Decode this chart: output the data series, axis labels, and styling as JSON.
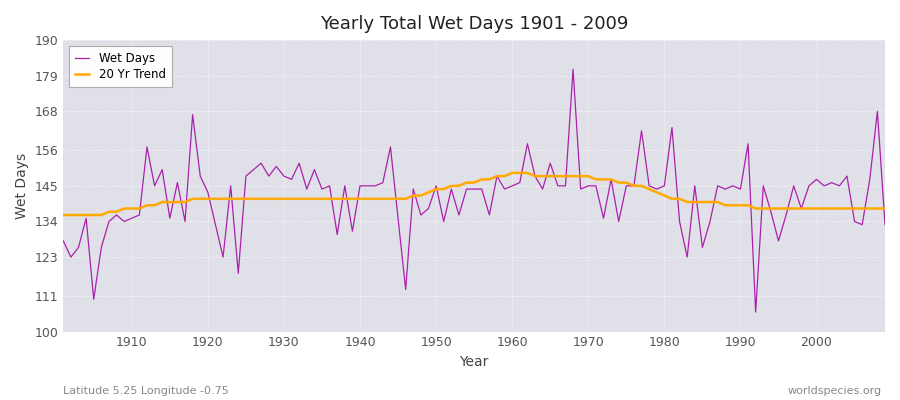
{
  "title": "Yearly Total Wet Days 1901 - 2009",
  "xlabel": "Year",
  "ylabel": "Wet Days",
  "xlim": [
    1901,
    2009
  ],
  "ylim": [
    100,
    190
  ],
  "yticks": [
    100,
    111,
    123,
    134,
    145,
    156,
    168,
    179,
    190
  ],
  "xticks": [
    1910,
    1920,
    1930,
    1940,
    1950,
    1960,
    1970,
    1980,
    1990,
    2000
  ],
  "bg_color": "#e0e0e8",
  "wet_days_color": "#aa22aa",
  "trend_color": "#ffaa00",
  "subtitle_left": "Latitude 5.25 Longitude -0.75",
  "subtitle_right": "worldspecies.org",
  "wet_days": {
    "1901": 128,
    "1902": 123,
    "1903": 126,
    "1904": 135,
    "1905": 110,
    "1906": 126,
    "1907": 134,
    "1908": 136,
    "1909": 134,
    "1910": 135,
    "1911": 136,
    "1912": 157,
    "1913": 145,
    "1914": 150,
    "1915": 135,
    "1916": 146,
    "1917": 134,
    "1918": 167,
    "1919": 148,
    "1920": 143,
    "1921": 133,
    "1922": 123,
    "1923": 145,
    "1924": 118,
    "1925": 148,
    "1926": 150,
    "1927": 152,
    "1928": 148,
    "1929": 151,
    "1930": 148,
    "1931": 147,
    "1932": 152,
    "1933": 144,
    "1934": 150,
    "1935": 144,
    "1936": 145,
    "1937": 130,
    "1938": 145,
    "1939": 131,
    "1940": 145,
    "1941": 145,
    "1942": 145,
    "1943": 146,
    "1944": 157,
    "1945": 135,
    "1946": 113,
    "1947": 144,
    "1948": 136,
    "1949": 138,
    "1950": 145,
    "1951": 134,
    "1952": 144,
    "1953": 136,
    "1954": 144,
    "1955": 144,
    "1956": 144,
    "1957": 136,
    "1958": 148,
    "1959": 144,
    "1960": 145,
    "1961": 146,
    "1962": 158,
    "1963": 148,
    "1964": 144,
    "1965": 152,
    "1966": 145,
    "1967": 145,
    "1968": 181,
    "1969": 144,
    "1970": 145,
    "1971": 145,
    "1972": 135,
    "1973": 147,
    "1974": 134,
    "1975": 145,
    "1976": 145,
    "1977": 162,
    "1978": 145,
    "1979": 144,
    "1980": 145,
    "1981": 163,
    "1982": 134,
    "1983": 123,
    "1984": 145,
    "1985": 126,
    "1986": 134,
    "1987": 145,
    "1988": 144,
    "1989": 145,
    "1990": 144,
    "1991": 158,
    "1992": 106,
    "1993": 145,
    "1994": 137,
    "1995": 128,
    "1996": 136,
    "1997": 145,
    "1998": 138,
    "1999": 145,
    "2000": 147,
    "2001": 145,
    "2002": 146,
    "2003": 145,
    "2004": 148,
    "2005": 134,
    "2006": 133,
    "2007": 147,
    "2008": 168,
    "2009": 133
  },
  "trend": {
    "1901": 136,
    "1902": 136,
    "1903": 136,
    "1904": 136,
    "1905": 136,
    "1906": 136,
    "1907": 137,
    "1908": 137,
    "1909": 138,
    "1910": 138,
    "1911": 138,
    "1912": 139,
    "1913": 139,
    "1914": 140,
    "1915": 140,
    "1916": 140,
    "1917": 140,
    "1918": 141,
    "1919": 141,
    "1920": 141,
    "1921": 141,
    "1922": 141,
    "1923": 141,
    "1924": 141,
    "1925": 141,
    "1926": 141,
    "1927": 141,
    "1928": 141,
    "1929": 141,
    "1930": 141,
    "1931": 141,
    "1932": 141,
    "1933": 141,
    "1934": 141,
    "1935": 141,
    "1936": 141,
    "1937": 141,
    "1938": 141,
    "1939": 141,
    "1940": 141,
    "1941": 141,
    "1942": 141,
    "1943": 141,
    "1944": 141,
    "1945": 141,
    "1946": 141,
    "1947": 142,
    "1948": 142,
    "1949": 143,
    "1950": 144,
    "1951": 144,
    "1952": 145,
    "1953": 145,
    "1954": 146,
    "1955": 146,
    "1956": 147,
    "1957": 147,
    "1958": 148,
    "1959": 148,
    "1960": 149,
    "1961": 149,
    "1962": 149,
    "1963": 148,
    "1964": 148,
    "1965": 148,
    "1966": 148,
    "1967": 148,
    "1968": 148,
    "1969": 148,
    "1970": 148,
    "1971": 147,
    "1972": 147,
    "1973": 147,
    "1974": 146,
    "1975": 146,
    "1976": 145,
    "1977": 145,
    "1978": 144,
    "1979": 143,
    "1980": 142,
    "1981": 141,
    "1982": 141,
    "1983": 140,
    "1984": 140,
    "1985": 140,
    "1986": 140,
    "1987": 140,
    "1988": 139,
    "1989": 139,
    "1990": 139,
    "1991": 139,
    "1992": 138,
    "1993": 138,
    "1994": 138,
    "1995": 138,
    "1996": 138,
    "1997": 138,
    "1998": 138,
    "1999": 138,
    "2000": 138,
    "2001": 138,
    "2002": 138,
    "2003": 138,
    "2004": 138,
    "2005": 138,
    "2006": 138,
    "2007": 138,
    "2008": 138,
    "2009": 138
  }
}
